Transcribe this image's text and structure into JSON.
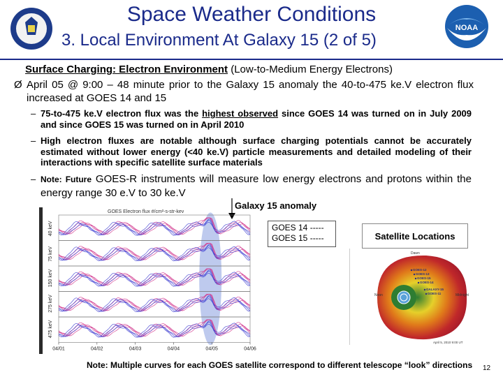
{
  "header": {
    "title": "Space Weather Conditions",
    "subtitle": "3. Local Environment At Galaxy 15 (2 of 5)"
  },
  "section": {
    "heading_bold": "Surface Charging: Electron Environment",
    "heading_rest": "(Low-to-Medium Energy Electrons)",
    "bullet_marker": "Ø",
    "bullet": "April 05 @ 9:00 – 48 minute prior to the Galaxy 15 anomaly the 40-to-475 ke.V electron flux increased at GOES 14 and 15",
    "sub_items": [
      {
        "marker": "–",
        "pre": "75-to-475 ke.V electron flux was the ",
        "emph": "highest observed",
        "post": " since GOES 14 was turned on in July 2009 and since GOES 15 was turned on in April 2010"
      },
      {
        "marker": "–",
        "text": "High electron fluxes are notable although surface charging potentials cannot be accurately estimated without lower energy (<40 ke.V) particle measurements and detailed modeling of their interactions with specific satellite surface materials"
      },
      {
        "marker": "–",
        "note_label": "Note: Future",
        "text": " GOES-R instruments will measure low energy electrons and protons within the energy range 30 e.V to 30 ke.V"
      }
    ]
  },
  "figure": {
    "anomaly_label": "Galaxy 15 anomaly",
    "legend": {
      "goes14": "GOES 14 -----",
      "goes15": "GOES 15 -----"
    },
    "chart_data": {
      "type": "line",
      "title": "GOES Electron flux #/cm²-s-str-kev",
      "panels": [
        "40 keV",
        "75 keV",
        "150 keV",
        "275 keV",
        "475 keV"
      ],
      "x_ticks": [
        "04/01",
        "04/02",
        "04/03",
        "04/04",
        "04/05",
        "04/06"
      ],
      "anomaly_x": "04/05",
      "series": [
        {
          "name": "GOES 14",
          "color": "#d0308a"
        },
        {
          "name": "GOES 15",
          "color": "#3a3ad0"
        }
      ]
    },
    "sat_locations": {
      "title": "Satellite Locations",
      "labels": {
        "top": "Dawn",
        "left": "Noon",
        "right": "Midnight",
        "bottom": "April 5, 2010 9:00 UT"
      },
      "sats": [
        "GOES-12",
        "GOES-13",
        "GOES-15",
        "GOES-14",
        "GALAXY-15",
        "GOES-11"
      ]
    }
  },
  "footer": {
    "note": "Note: Multiple curves for each GOES satellite correspond to different telescope “look” directions",
    "page": "12"
  },
  "colors": {
    "title": "#1a2a8a",
    "anomaly_band": "#a8b8e8"
  }
}
